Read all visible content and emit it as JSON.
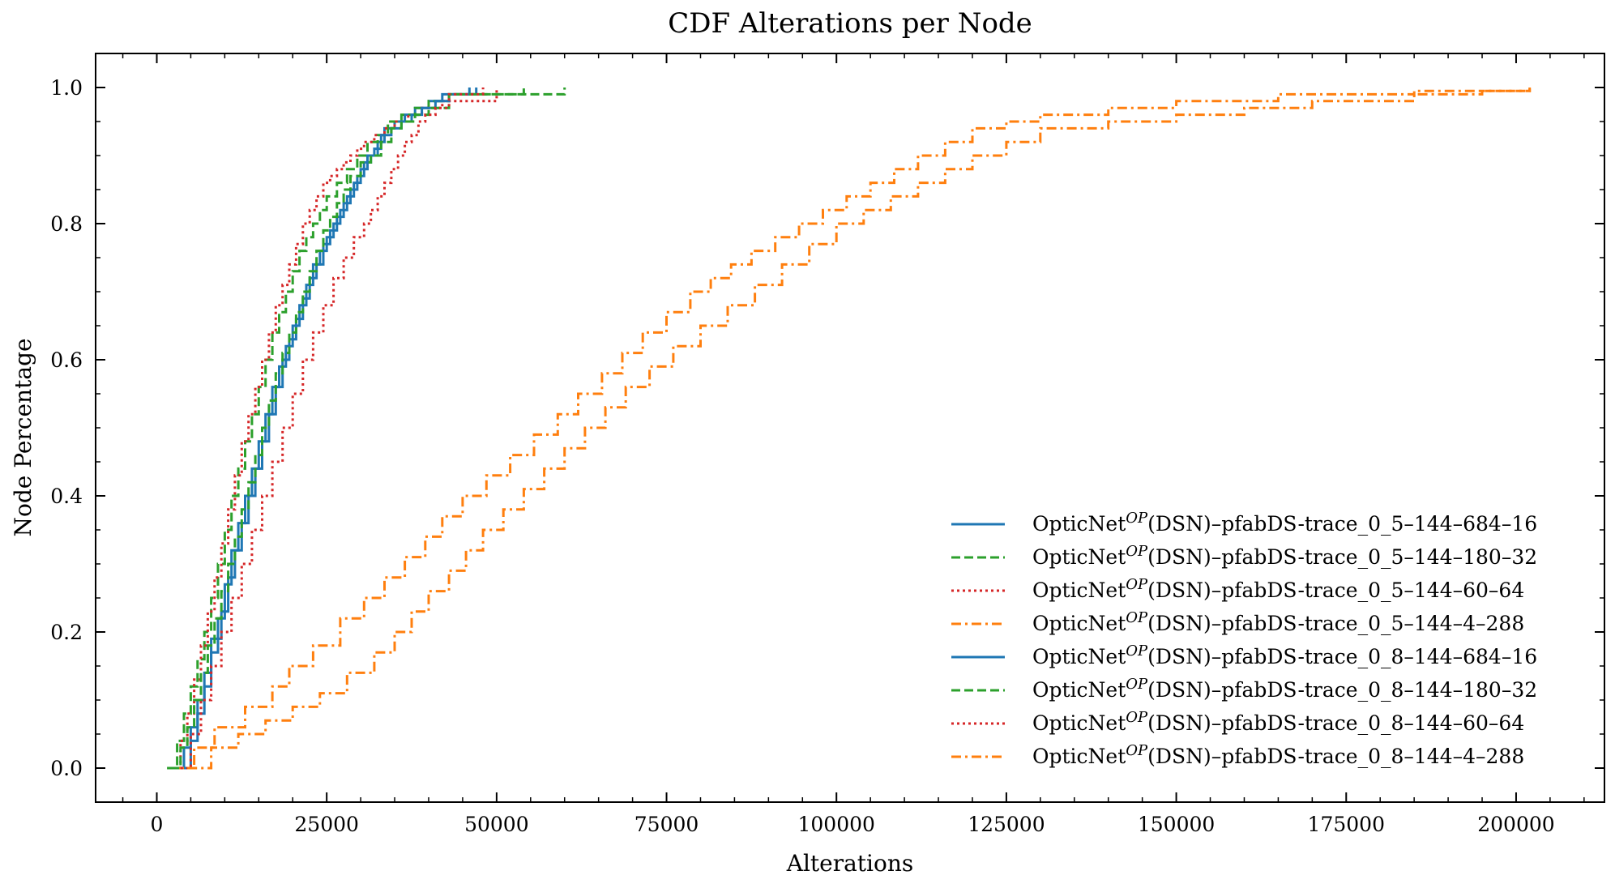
{
  "chart_data": {
    "type": "line",
    "title": "CDF Alterations per Node",
    "xlabel": "Alterations",
    "ylabel": "Node Percentage",
    "xlim": [
      -9000,
      213000
    ],
    "ylim": [
      -0.05,
      1.05
    ],
    "xticks": [
      0,
      25000,
      50000,
      75000,
      100000,
      125000,
      150000,
      175000,
      200000
    ],
    "yticks": [
      0.0,
      0.2,
      0.4,
      0.6,
      0.8,
      1.0
    ],
    "xtick_labels": [
      "0",
      "25000",
      "50000",
      "75000",
      "100000",
      "125000",
      "150000",
      "175000",
      "200000"
    ],
    "ytick_labels": [
      "0.0",
      "0.2",
      "0.4",
      "0.6",
      "0.8",
      "1.0"
    ],
    "grid": false,
    "legend_position": "lower-right",
    "legend_prefix": "OpticNet",
    "legend_superscript": "OP",
    "series": [
      {
        "name": "(DSN)–pfabDS-trace_0_5–144–684–16",
        "color": "#1f77b4",
        "dash": "solid",
        "x": [
          2800,
          4000,
          5000,
          6000,
          7000,
          8000,
          9500,
          10500,
          11500,
          12500,
          13500,
          14500,
          15500,
          16500,
          17500,
          18500,
          19500,
          20500,
          21500,
          22500,
          23500,
          24500,
          25500,
          26500,
          27500,
          28500,
          29500,
          30500,
          31500,
          32500,
          33500,
          35000,
          36500,
          38000,
          40000,
          42000,
          47000
        ],
        "y": [
          0.0,
          0.03,
          0.06,
          0.1,
          0.14,
          0.19,
          0.23,
          0.28,
          0.32,
          0.36,
          0.4,
          0.44,
          0.48,
          0.52,
          0.56,
          0.6,
          0.63,
          0.66,
          0.69,
          0.72,
          0.74,
          0.77,
          0.79,
          0.81,
          0.83,
          0.85,
          0.87,
          0.89,
          0.9,
          0.92,
          0.94,
          0.95,
          0.96,
          0.97,
          0.98,
          0.99,
          1.0
        ]
      },
      {
        "name": "(DSN)–pfabDS-trace_0_5–144–180–32",
        "color": "#2ca02c",
        "dash": "dashed",
        "x": [
          1500,
          3000,
          4000,
          5000,
          6000,
          7000,
          8000,
          9000,
          10000,
          11000,
          12000,
          13000,
          14000,
          15000,
          16000,
          17000,
          18000,
          19000,
          20000,
          21000,
          22000,
          23000,
          24000,
          25000,
          26500,
          28000,
          29500,
          31000,
          32500,
          34000,
          36000,
          38000,
          40000,
          43000,
          60000
        ],
        "y": [
          0.0,
          0.04,
          0.08,
          0.12,
          0.16,
          0.2,
          0.25,
          0.3,
          0.35,
          0.4,
          0.44,
          0.48,
          0.52,
          0.56,
          0.6,
          0.64,
          0.67,
          0.7,
          0.73,
          0.76,
          0.78,
          0.8,
          0.82,
          0.84,
          0.86,
          0.88,
          0.9,
          0.92,
          0.93,
          0.95,
          0.96,
          0.97,
          0.98,
          0.99,
          1.0
        ]
      },
      {
        "name": "(DSN)–pfabDS-trace_0_5–144–60–64",
        "color": "#d62728",
        "dash": "dotted",
        "x": [
          2500,
          3500,
          4500,
          5500,
          6500,
          7500,
          8500,
          9500,
          10500,
          11500,
          12500,
          13500,
          14500,
          15500,
          16500,
          17500,
          18500,
          19500,
          20500,
          21500,
          22500,
          23500,
          24500,
          25500,
          26500,
          27500,
          28500,
          29500,
          30500,
          32000,
          33500,
          35000,
          37000,
          39000,
          42000,
          50000
        ],
        "y": [
          0.0,
          0.04,
          0.08,
          0.13,
          0.18,
          0.23,
          0.28,
          0.33,
          0.38,
          0.43,
          0.48,
          0.52,
          0.56,
          0.6,
          0.64,
          0.68,
          0.71,
          0.74,
          0.77,
          0.8,
          0.82,
          0.84,
          0.86,
          0.87,
          0.88,
          0.89,
          0.9,
          0.91,
          0.92,
          0.93,
          0.94,
          0.95,
          0.96,
          0.97,
          0.98,
          1.0
        ]
      },
      {
        "name": "(DSN)–pfabDS-trace_0_5–144–4–288",
        "color": "#ff7f0e",
        "dash": "dashdot",
        "x": [
          3000,
          5500,
          8500,
          13000,
          17000,
          19500,
          23000,
          27000,
          30500,
          33500,
          36500,
          39500,
          42000,
          45000,
          48500,
          52000,
          55500,
          59000,
          62000,
          65500,
          68500,
          71500,
          75000,
          78500,
          81500,
          84500,
          87500,
          91000,
          94500,
          98000,
          101500,
          105000,
          108500,
          112000,
          116000,
          120000,
          125000,
          130000,
          140000,
          150000,
          165000,
          185000,
          202000
        ],
        "y": [
          0.0,
          0.03,
          0.06,
          0.09,
          0.12,
          0.15,
          0.18,
          0.22,
          0.25,
          0.28,
          0.31,
          0.34,
          0.37,
          0.4,
          0.43,
          0.46,
          0.49,
          0.52,
          0.55,
          0.58,
          0.61,
          0.64,
          0.67,
          0.7,
          0.72,
          0.74,
          0.76,
          0.78,
          0.8,
          0.82,
          0.84,
          0.86,
          0.88,
          0.9,
          0.92,
          0.94,
          0.95,
          0.96,
          0.97,
          0.98,
          0.99,
          0.995,
          1.0
        ]
      },
      {
        "name": "(DSN)–pfabDS-trace_0_8–144–684–16",
        "color": "#1f77b4",
        "dash": "solid",
        "x": [
          4000,
          5000,
          6000,
          7000,
          8000,
          9000,
          10000,
          11000,
          12000,
          13000,
          14000,
          15000,
          16000,
          17000,
          18000,
          19000,
          20000,
          21000,
          22000,
          23000,
          24000,
          25000,
          26000,
          27000,
          28000,
          29000,
          30000,
          31000,
          32000,
          33000,
          34500,
          36000,
          37500,
          39000,
          41000,
          43000,
          46000
        ],
        "y": [
          0.0,
          0.04,
          0.08,
          0.12,
          0.17,
          0.22,
          0.27,
          0.32,
          0.36,
          0.4,
          0.44,
          0.48,
          0.52,
          0.56,
          0.59,
          0.62,
          0.65,
          0.68,
          0.71,
          0.74,
          0.76,
          0.78,
          0.8,
          0.82,
          0.84,
          0.86,
          0.88,
          0.9,
          0.91,
          0.93,
          0.94,
          0.95,
          0.96,
          0.97,
          0.98,
          0.99,
          1.0
        ]
      },
      {
        "name": "(DSN)–pfabDS-trace_0_8–144–180–32",
        "color": "#2ca02c",
        "dash": "dashed",
        "x": [
          2000,
          3500,
          4500,
          5500,
          6500,
          7500,
          8500,
          9500,
          10500,
          11500,
          12500,
          13500,
          14500,
          15500,
          16500,
          17500,
          18500,
          19500,
          20500,
          21500,
          22500,
          23500,
          24500,
          25500,
          26500,
          27500,
          28500,
          30000,
          31500,
          33000,
          34500,
          36000,
          38000,
          40000,
          43000,
          54000
        ],
        "y": [
          0.0,
          0.03,
          0.06,
          0.1,
          0.14,
          0.18,
          0.22,
          0.26,
          0.3,
          0.34,
          0.38,
          0.42,
          0.46,
          0.5,
          0.54,
          0.58,
          0.61,
          0.64,
          0.67,
          0.7,
          0.73,
          0.76,
          0.79,
          0.81,
          0.83,
          0.85,
          0.87,
          0.89,
          0.9,
          0.92,
          0.94,
          0.95,
          0.96,
          0.97,
          0.99,
          1.0
        ]
      },
      {
        "name": "(DSN)–pfabDS-trace_0_8–144–60–64",
        "color": "#d62728",
        "dash": "dotted",
        "x": [
          3500,
          5000,
          6500,
          8000,
          9500,
          11000,
          12500,
          14000,
          15500,
          17000,
          18500,
          20000,
          21500,
          23000,
          24500,
          26000,
          27500,
          29000,
          30500,
          31500,
          32500,
          33500,
          34500,
          35500,
          36500,
          37500,
          38500,
          39500,
          41000,
          43000,
          48000
        ],
        "y": [
          0.0,
          0.05,
          0.1,
          0.15,
          0.2,
          0.25,
          0.3,
          0.35,
          0.4,
          0.45,
          0.5,
          0.55,
          0.6,
          0.64,
          0.68,
          0.72,
          0.75,
          0.78,
          0.8,
          0.82,
          0.84,
          0.86,
          0.88,
          0.9,
          0.92,
          0.93,
          0.95,
          0.96,
          0.97,
          0.99,
          1.0
        ]
      },
      {
        "name": "(DSN)–pfabDS-trace_0_8–144–4–288",
        "color": "#ff7f0e",
        "dash": "dashdot",
        "x": [
          4500,
          8000,
          12000,
          16000,
          20000,
          24000,
          28000,
          32000,
          35000,
          37500,
          40000,
          43000,
          45500,
          48000,
          51000,
          54000,
          57000,
          60000,
          63000,
          66000,
          69000,
          72500,
          76000,
          80000,
          84000,
          88000,
          92000,
          96000,
          100000,
          104000,
          108000,
          112000,
          116000,
          120000,
          125000,
          130000,
          140000,
          150000,
          160000,
          170000,
          185000,
          195000,
          202000
        ],
        "y": [
          0.0,
          0.03,
          0.05,
          0.07,
          0.09,
          0.11,
          0.14,
          0.17,
          0.2,
          0.23,
          0.26,
          0.29,
          0.32,
          0.35,
          0.38,
          0.41,
          0.44,
          0.47,
          0.5,
          0.53,
          0.56,
          0.59,
          0.62,
          0.65,
          0.68,
          0.71,
          0.74,
          0.77,
          0.8,
          0.82,
          0.84,
          0.86,
          0.88,
          0.9,
          0.92,
          0.94,
          0.95,
          0.96,
          0.97,
          0.98,
          0.99,
          0.995,
          1.0
        ]
      }
    ]
  }
}
